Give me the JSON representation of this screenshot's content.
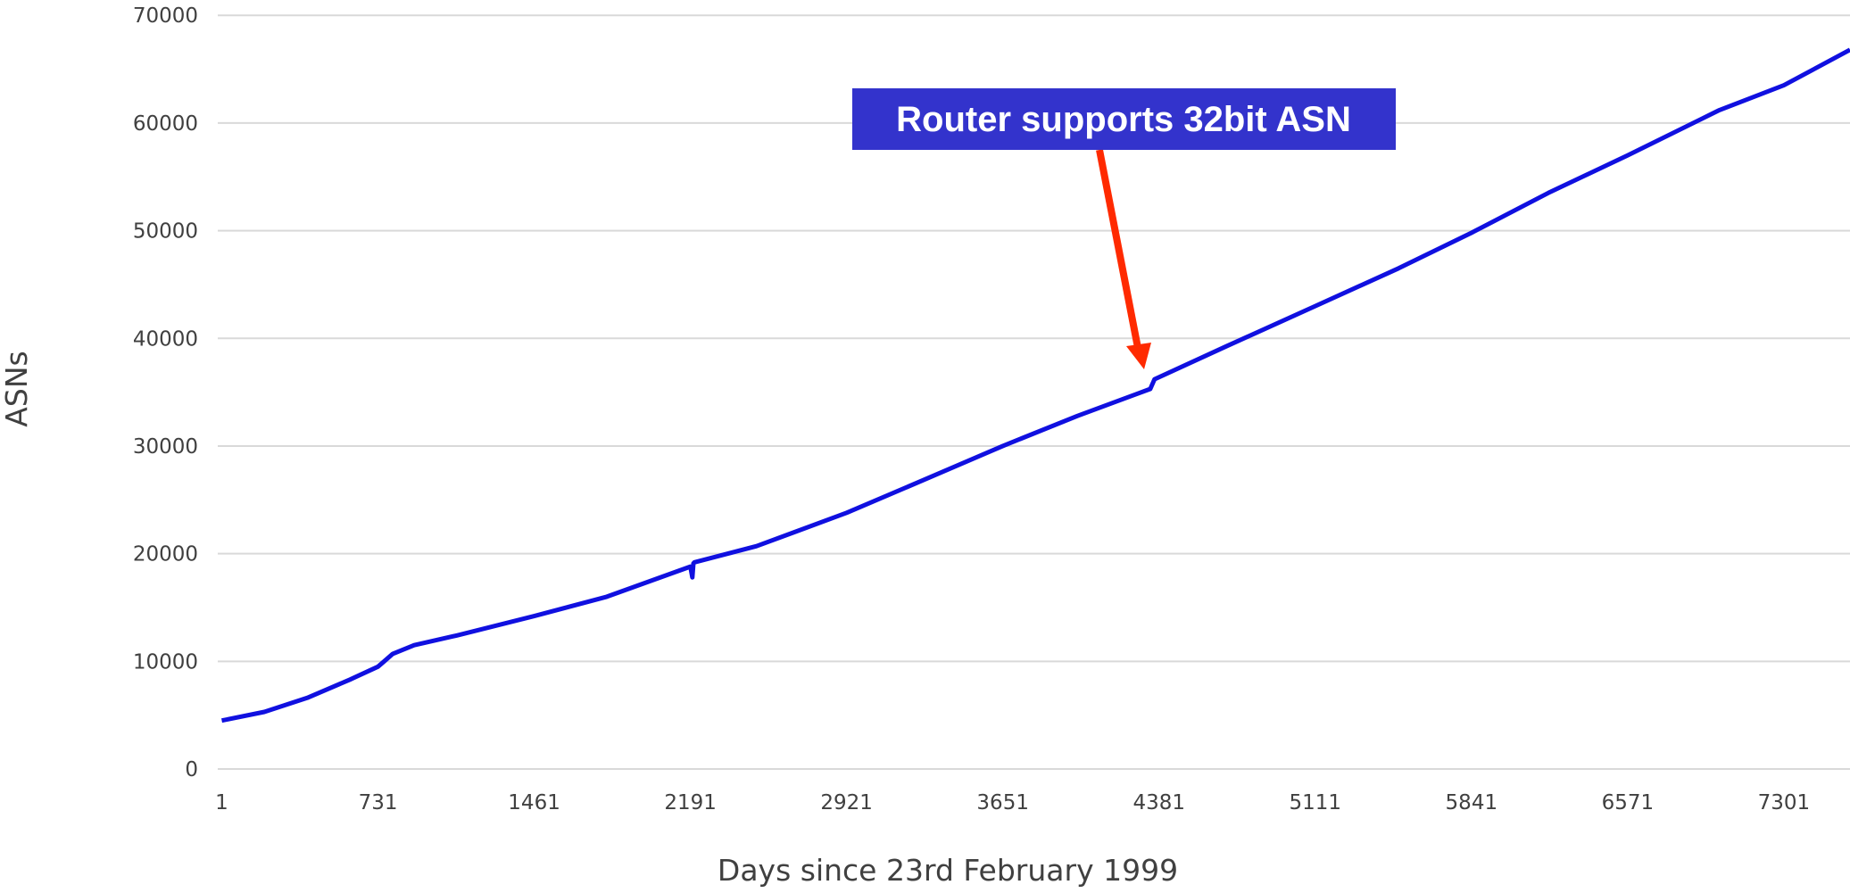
{
  "chart_data": {
    "type": "line",
    "xlabel": "Days since 23rd February 1999",
    "ylabel": "ASNs",
    "annotation": "Router supports 32bit ASN",
    "color": "#1010e0",
    "x": [
      1,
      200,
      400,
      600,
      731,
      760,
      800,
      900,
      1100,
      1461,
      1800,
      2191,
      2200,
      2205,
      2210,
      2500,
      2921,
      3300,
      3651,
      4000,
      4340,
      4360,
      4700,
      5111,
      5500,
      5841,
      6200,
      6571,
      7000,
      7301,
      7610
    ],
    "values": [
      4500,
      5300,
      6600,
      8300,
      9500,
      10000,
      10700,
      11500,
      12400,
      14200,
      16000,
      18800,
      17800,
      19100,
      19200,
      20700,
      23800,
      27000,
      30000,
      32800,
      35300,
      36200,
      39300,
      43000,
      46500,
      49800,
      53500,
      57000,
      61200,
      63500,
      66800
    ],
    "xlim": [
      1,
      7610
    ],
    "xticks": [
      1,
      731,
      1461,
      2191,
      2921,
      3651,
      4381,
      5111,
      5841,
      6571,
      7301
    ],
    "ylim": [
      0,
      70000
    ],
    "yticks": [
      0,
      10000,
      20000,
      30000,
      40000,
      50000,
      60000,
      70000
    ],
    "grid": true
  }
}
